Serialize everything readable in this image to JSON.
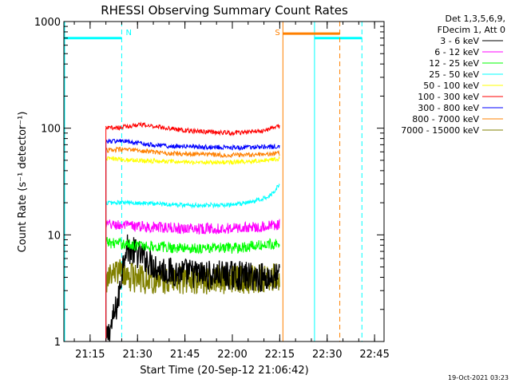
{
  "chart_data": {
    "type": "line",
    "title": "RHESSI Observing Summary Count Rates",
    "xlabel": "Start Time (20-Sep-12 21:06:42)",
    "ylabel": "Count Rate (s⁻¹ detector⁻¹)",
    "y_scale": "log",
    "ylim": [
      1,
      1000
    ],
    "xlim": [
      "21:06:42",
      "22:48"
    ],
    "x_ticks": [
      "21:15",
      "21:30",
      "21:45",
      "22:00",
      "22:15",
      "22:30",
      "22:45"
    ],
    "y_ticks": [
      "1",
      "10",
      "100",
      "1000"
    ],
    "grid": false,
    "legend_position": "top-right",
    "legend_header": [
      "Det 1,3,5,6,9,",
      "FDecim 1, Att 0"
    ],
    "footer_date": "19-Oct-2021 03:23",
    "markers": [
      {
        "label": "N",
        "time": "21:25",
        "style": "dashed"
      },
      {
        "label": "S",
        "time": "22:16",
        "style": "solid"
      }
    ],
    "data_window": [
      "21:20",
      "22:15"
    ],
    "series": [
      {
        "name": "3 - 6 keV",
        "color": "#000000",
        "times": [
          "21:20",
          "21:22",
          "21:24",
          "21:26",
          "21:28",
          "21:32",
          "21:36",
          "21:40",
          "21:46",
          "21:52",
          "21:58",
          "22:04",
          "22:10",
          "22:15"
        ],
        "values": [
          1.0,
          1.5,
          2.5,
          7.5,
          7.2,
          6.2,
          5.0,
          4.5,
          4.4,
          4.2,
          4.2,
          4.1,
          4.0,
          4.0
        ]
      },
      {
        "name": "6 - 12 keV",
        "color": "#ff00ff",
        "times": [
          "21:20",
          "21:30",
          "21:45",
          "22:00",
          "22:10",
          "22:15"
        ],
        "values": [
          12.5,
          12.0,
          11.5,
          11.5,
          12.0,
          12.5
        ]
      },
      {
        "name": "12 - 25 keV",
        "color": "#00ff00",
        "times": [
          "21:20",
          "21:30",
          "21:45",
          "22:00",
          "22:10",
          "22:15"
        ],
        "values": [
          8.5,
          8.0,
          7.5,
          7.5,
          8.0,
          8.5
        ]
      },
      {
        "name": "25 - 50 keV",
        "color": "#00ffff",
        "times": [
          "21:20",
          "21:30",
          "21:45",
          "22:00",
          "22:05",
          "22:10",
          "22:13",
          "22:15"
        ],
        "values": [
          20,
          20,
          19,
          19,
          20,
          22,
          25,
          30
        ]
      },
      {
        "name": "50 - 100 keV",
        "color": "#ffff00",
        "times": [
          "21:20",
          "21:30",
          "21:45",
          "22:00",
          "22:10",
          "22:15"
        ],
        "values": [
          52,
          50,
          48,
          48,
          50,
          52
        ]
      },
      {
        "name": "100 - 300 keV",
        "color": "#ff0000",
        "times": [
          "21:20",
          "21:25",
          "21:30",
          "21:36",
          "21:45",
          "22:00",
          "22:10",
          "22:15"
        ],
        "values": [
          100,
          102,
          108,
          104,
          95,
          90,
          95,
          105
        ]
      },
      {
        "name": "300 - 800 keV",
        "color": "#0000ff",
        "times": [
          "21:20",
          "21:25",
          "21:30",
          "21:40",
          "22:00",
          "22:15"
        ],
        "values": [
          75,
          76,
          72,
          68,
          66,
          67
        ]
      },
      {
        "name": "800 - 7000 keV",
        "color": "#ff8000",
        "times": [
          "21:20",
          "21:25",
          "21:30",
          "21:40",
          "22:00",
          "22:15"
        ],
        "values": [
          62,
          63,
          62,
          58,
          56,
          58
        ]
      },
      {
        "name": "7000 - 15000 keV",
        "color": "#808000",
        "times": [
          "21:20",
          "21:22",
          "21:24",
          "21:28",
          "21:32",
          "21:40",
          "21:50",
          "22:00",
          "22:10",
          "22:15"
        ],
        "values": [
          3.5,
          4.2,
          4.5,
          4.0,
          3.8,
          3.8,
          3.8,
          3.8,
          3.9,
          4.0
        ]
      }
    ],
    "status_bars": [
      {
        "name": "night",
        "color": "#00ffff",
        "level": 700,
        "intervals": [
          [
            "21:06:42",
            "21:25"
          ],
          [
            "22:26",
            "22:41"
          ]
        ],
        "boundaries": [
          {
            "time": "21:06:42",
            "style": "solid"
          },
          {
            "time": "21:25",
            "style": "dashed"
          },
          {
            "time": "22:26",
            "style": "solid"
          },
          {
            "time": "22:41",
            "style": "dashed"
          }
        ]
      },
      {
        "name": "saa",
        "color": "#ff8000",
        "level": 770,
        "intervals": [
          [
            "22:16",
            "22:34"
          ]
        ],
        "boundaries": [
          {
            "time": "22:16",
            "style": "solid"
          },
          {
            "time": "22:34",
            "style": "dashed"
          }
        ]
      }
    ]
  }
}
